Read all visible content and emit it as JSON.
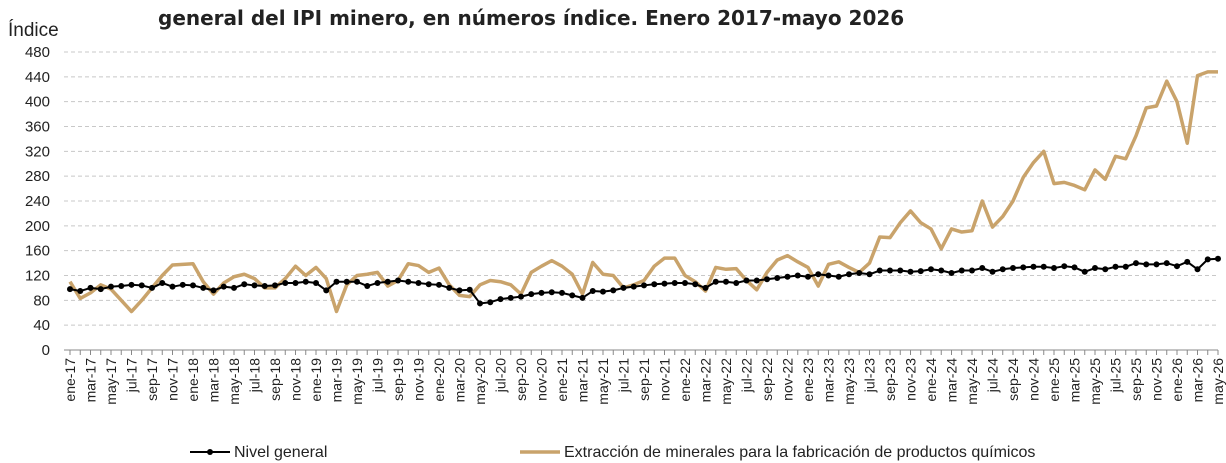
{
  "chart_data": {
    "type": "line",
    "title": "general del IPI minero, en números índice. Enero 2017-mayo 2026",
    "y_label": "Índice",
    "categories": [
      "ene-17",
      null,
      "mar-17",
      null,
      "may-17",
      null,
      "jul-17",
      null,
      "sep-17",
      null,
      "nov-17",
      null,
      "ene-18",
      null,
      "mar-18",
      null,
      "may-18",
      null,
      "jul-18",
      null,
      "sep-18",
      null,
      "nov-18",
      null,
      "ene-19",
      null,
      "mar-19",
      null,
      "may-19",
      null,
      "jul-19",
      null,
      "sep-19",
      null,
      "nov-19",
      null,
      "ene-20",
      null,
      "mar-20",
      null,
      "may-20",
      null,
      "jul-20",
      null,
      "sep-20",
      null,
      "nov-20",
      null,
      "ene-21",
      null,
      "mar-21",
      null,
      "may-21",
      null,
      "jul-21",
      null,
      "sep-21",
      null,
      "nov-21",
      null,
      "ene-22",
      null,
      "mar-22",
      null,
      "may-22",
      null,
      "jul-22",
      null,
      "sep-22",
      null,
      "nov-22",
      null,
      "ene-23",
      null,
      "mar-23",
      null,
      "may-23",
      null,
      "jul-23",
      null,
      "sep-23",
      null,
      "nov-23",
      null,
      "ene-24",
      null,
      "mar-24",
      null,
      "may-24",
      null,
      "jul-24",
      null,
      "sep-24",
      null,
      "nov-24",
      null,
      "ene-25",
      null,
      "mar-25",
      null,
      "may-25",
      null,
      "jul-25",
      null,
      "sep-25",
      null,
      "nov-25",
      null,
      "ene-26",
      null,
      "mar-26",
      null,
      "may-26"
    ],
    "series": [
      {
        "name": "Nivel general",
        "color": "#000000",
        "markers": true,
        "values": [
          98,
          95,
          100,
          98,
          102,
          103,
          105,
          104,
          100,
          108,
          102,
          105,
          104,
          100,
          96,
          102,
          100,
          106,
          104,
          103,
          104,
          108,
          108,
          110,
          108,
          96,
          110,
          110,
          110,
          103,
          108,
          110,
          112,
          110,
          108,
          106,
          105,
          100,
          96,
          97,
          75,
          77,
          82,
          84,
          86,
          90,
          92,
          93,
          92,
          88,
          84,
          95,
          94,
          96,
          100,
          102,
          104,
          106,
          107,
          108,
          108,
          106,
          100,
          110,
          110,
          108,
          112,
          112,
          114,
          116,
          118,
          120,
          118,
          122,
          120,
          118,
          122,
          124,
          122,
          128,
          128,
          128,
          126,
          127,
          130,
          128,
          124,
          128,
          128,
          132,
          126,
          130,
          132,
          133,
          134,
          134,
          132,
          135,
          133,
          126,
          132,
          130,
          134,
          134,
          140,
          138,
          138,
          140,
          135,
          142,
          130,
          146,
          147
        ]
      },
      {
        "name": "Extracción de minerales para la fabricación de productos químicos",
        "color": "#c9a36b",
        "markers": false,
        "values": [
          110,
          83,
          92,
          105,
          98,
          80,
          62,
          80,
          100,
          120,
          137,
          138,
          139,
          110,
          90,
          108,
          118,
          122,
          115,
          100,
          100,
          115,
          135,
          120,
          133,
          115,
          62,
          105,
          120,
          122,
          125,
          103,
          112,
          139,
          136,
          125,
          132,
          105,
          88,
          86,
          105,
          112,
          110,
          105,
          90,
          125,
          135,
          144,
          135,
          122,
          90,
          141,
          122,
          120,
          100,
          105,
          112,
          135,
          148,
          148,
          120,
          110,
          95,
          133,
          130,
          131,
          112,
          97,
          125,
          145,
          152,
          142,
          133,
          103,
          138,
          142,
          133,
          125,
          140,
          182,
          181,
          205,
          224,
          205,
          195,
          163,
          195,
          190,
          192,
          240,
          198,
          215,
          240,
          278,
          302,
          320,
          268,
          270,
          265,
          258,
          290,
          275,
          312,
          308,
          345,
          390,
          393,
          433,
          400,
          333,
          442,
          448,
          448
        ]
      }
    ],
    "ylim": [
      0,
      480
    ],
    "yticks": [
      0,
      40,
      80,
      120,
      160,
      200,
      240,
      280,
      320,
      360,
      400,
      440,
      480
    ],
    "grid": true
  }
}
